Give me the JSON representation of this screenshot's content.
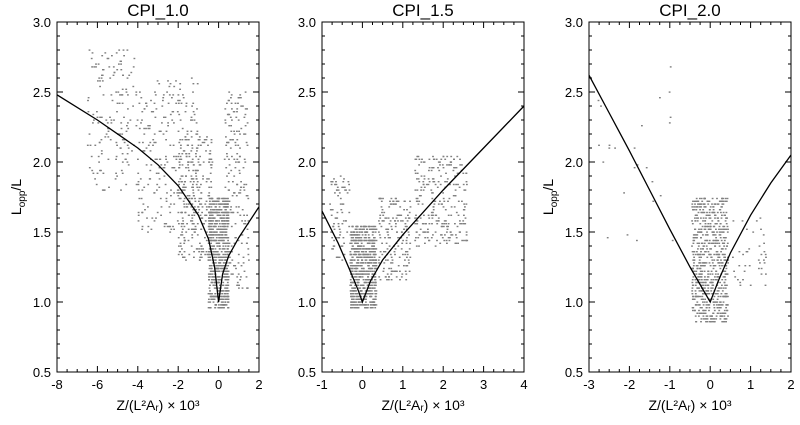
{
  "chart_data": [
    {
      "type": "scatter",
      "title": "CPI_1.0",
      "xlabel": "Z/(L²Aᵣ) × 10³",
      "ylabel": "L_opp/L",
      "xlim": [
        -8,
        2
      ],
      "ylim": [
        0.5,
        3.0
      ],
      "xticks": [
        "-8",
        "-6",
        "-4",
        "-2",
        "0",
        "2"
      ],
      "yticks": [
        "0.5",
        "1.0",
        "1.5",
        "2.0",
        "2.5",
        "3.0"
      ],
      "grid": false,
      "marker_color": "#808080",
      "curve_color": "#000000",
      "curve": {
        "x": [
          -8,
          -6,
          -4,
          -3,
          -2,
          -1,
          -0.5,
          -0.2,
          0,
          0.2,
          0.5,
          1,
          1.5,
          2
        ],
        "y": [
          2.48,
          2.3,
          2.1,
          1.98,
          1.83,
          1.62,
          1.45,
          1.25,
          1.0,
          1.2,
          1.33,
          1.46,
          1.57,
          1.68
        ]
      },
      "clusters": [
        {
          "x": [
            -6.5,
            -4.0
          ],
          "y": [
            1.8,
            2.8
          ],
          "n": 160
        },
        {
          "x": [
            -4.0,
            -1.0
          ],
          "y": [
            1.5,
            2.6
          ],
          "n": 260
        },
        {
          "x": [
            -2.0,
            -0.3
          ],
          "y": [
            1.3,
            2.2
          ],
          "n": 260
        },
        {
          "x": [
            -0.5,
            0.5
          ],
          "y": [
            0.95,
            1.75
          ],
          "n": 700
        },
        {
          "x": [
            0.3,
            1.5
          ],
          "y": [
            1.1,
            2.5
          ],
          "n": 200
        }
      ]
    },
    {
      "type": "scatter",
      "title": "CPI_1.5",
      "xlabel": "Z/(L²Aᵣ) × 10³",
      "ylabel": "",
      "xlim": [
        -1,
        4
      ],
      "ylim": [
        0.5,
        3.0
      ],
      "xticks": [
        "-1",
        "0",
        "1",
        "2",
        "3",
        "4"
      ],
      "yticks": [
        "0.5",
        "1.0",
        "1.5",
        "2.0",
        "2.5",
        "3.0"
      ],
      "grid": false,
      "marker_color": "#808080",
      "curve_color": "#000000",
      "curve": {
        "x": [
          -1,
          -0.6,
          -0.3,
          -0.1,
          0,
          0.2,
          0.5,
          1,
          1.5,
          2,
          2.5,
          3,
          3.5,
          4
        ],
        "y": [
          1.65,
          1.42,
          1.22,
          1.08,
          1.0,
          1.15,
          1.3,
          1.48,
          1.64,
          1.8,
          1.95,
          2.1,
          2.25,
          2.4
        ]
      },
      "clusters": [
        {
          "x": [
            -0.8,
            -0.3
          ],
          "y": [
            1.3,
            1.9
          ],
          "n": 80
        },
        {
          "x": [
            -0.3,
            0.35
          ],
          "y": [
            0.95,
            1.55
          ],
          "n": 700
        },
        {
          "x": [
            0.4,
            1.2
          ],
          "y": [
            1.15,
            1.75
          ],
          "n": 180
        },
        {
          "x": [
            1.3,
            2.6
          ],
          "y": [
            1.4,
            2.05
          ],
          "n": 260
        }
      ]
    },
    {
      "type": "scatter",
      "title": "CPI_2.0",
      "xlabel": "Z/(L²Aᵣ) × 10³",
      "ylabel": "L_opp/L",
      "xlim": [
        -3,
        2
      ],
      "ylim": [
        0.5,
        3.0
      ],
      "xticks": [
        "-3",
        "-2",
        "-1",
        "0",
        "1",
        "2"
      ],
      "yticks": [
        "0.5",
        "1.0",
        "1.5",
        "2.0",
        "2.5",
        "3.0"
      ],
      "grid": false,
      "marker_color": "#808080",
      "curve_color": "#000000",
      "curve": {
        "x": [
          -3,
          -2.5,
          -2,
          -1.5,
          -1,
          -0.5,
          -0.2,
          0,
          0.2,
          0.5,
          1,
          1.5,
          2
        ],
        "y": [
          2.62,
          2.35,
          2.08,
          1.8,
          1.52,
          1.25,
          1.1,
          1.0,
          1.15,
          1.35,
          1.62,
          1.85,
          2.05
        ]
      },
      "clusters": [
        {
          "x": [
            -0.45,
            0.45
          ],
          "y": [
            0.85,
            1.75
          ],
          "n": 700
        },
        {
          "x": [
            -2.8,
            -0.8
          ],
          "y": [
            1.4,
            2.7
          ],
          "n": 25
        },
        {
          "x": [
            0.5,
            1.4
          ],
          "y": [
            1.1,
            1.6
          ],
          "n": 40
        }
      ]
    }
  ]
}
